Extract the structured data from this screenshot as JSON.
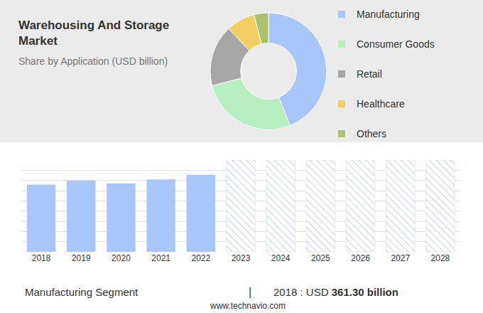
{
  "chart_data": [
    {
      "type": "pie",
      "title": "Warehousing And Storage Market",
      "subtitle": "Share by Application (USD billion)",
      "labels": [
        "Manufacturing",
        "Consumer Goods",
        "Retail",
        "Healthcare",
        "Others"
      ],
      "values": [
        44,
        27,
        17,
        8,
        4
      ],
      "colors": [
        "#a9c6fb",
        "#b6f0c0",
        "#a6a6a6",
        "#f2cf60",
        "#a9c46c"
      ]
    },
    {
      "type": "bar",
      "categories": [
        "2018",
        "2019",
        "2020",
        "2021",
        "2022",
        "2023",
        "2024",
        "2025",
        "2026",
        "2027",
        "2028"
      ],
      "series": [
        {
          "color": "#a9c6fb",
          "values": [
            6.6,
            7.0,
            6.7,
            7.1,
            7.55,
            null,
            null,
            null,
            null,
            null,
            null
          ]
        },
        {
          "color": "#c3d2f0",
          "marker": "hatched",
          "values": [
            null,
            null,
            null,
            null,
            null,
            9,
            9,
            9,
            9,
            9,
            9
          ]
        }
      ],
      "ylim": [
        0,
        9
      ],
      "yticks": [
        0,
        1,
        2,
        3,
        4,
        5,
        6,
        7,
        8,
        9
      ],
      "grid": true,
      "tick_labels": "x",
      "annotations": [
        "Manufacturing Segment",
        "|",
        "2018 : USD",
        "361.30 billion",
        "www.technavio.com"
      ]
    }
  ]
}
